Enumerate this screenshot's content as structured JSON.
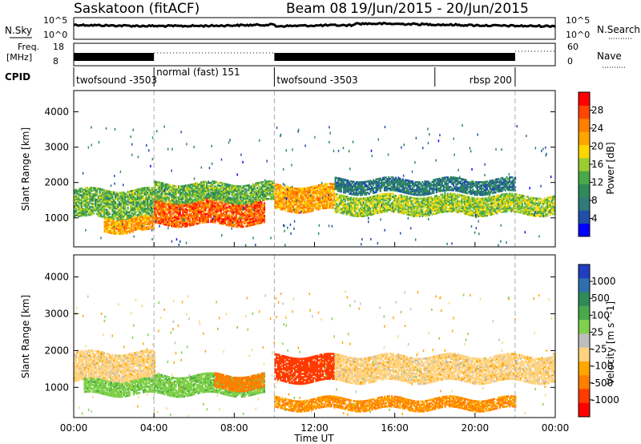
{
  "header": {
    "station": "Saskatoon (fitACF)",
    "beam": "Beam 08",
    "date_range": "19/Jun/2015 - 20/Jun/2015"
  },
  "top_panels": {
    "nsky_label": "N.Sky",
    "nsky_ticks": [
      "10^5",
      "10^0"
    ],
    "nsearch_label": "N.Search",
    "nsearch_ticks": [
      "10^5",
      "10^0"
    ],
    "freq_label": "Freq.",
    "freq_unit": "[MHz]",
    "freq_ticks": [
      "18",
      "8"
    ],
    "nave_label": "Nave",
    "nave_ticks": [
      "60",
      "0"
    ],
    "cpid_label": "CPID",
    "cpid_segments": [
      {
        "label": "twofsound -3503",
        "start_hour": 0,
        "end_hour": 4
      },
      {
        "label": "normal (fast) 151",
        "start_hour": 4,
        "end_hour": 10
      },
      {
        "label": "twofsound -3503",
        "start_hour": 10,
        "end_hour": 18
      },
      {
        "label": "rbsp 200",
        "start_hour": 18,
        "end_hour": 22
      }
    ]
  },
  "power_panel": {
    "ylabel": "Slant Range [km]",
    "yticks": [
      "4000",
      "3000",
      "2000",
      "1000"
    ],
    "colorbar_label": "Power [dB]",
    "colorbar_ticks": [
      "28",
      "24",
      "20",
      "16",
      "12",
      "8",
      "4"
    ],
    "colors": [
      "#0000ff",
      "#1f4fa8",
      "#2f7a7a",
      "#2e8b57",
      "#4aa84a",
      "#9acd32",
      "#ffd700",
      "#ffa500",
      "#ff7f00",
      "#ff4500",
      "#ff0000"
    ]
  },
  "velocity_panel": {
    "ylabel": "Slant Range [km]",
    "yticks": [
      "4000",
      "3000",
      "2000",
      "1000"
    ],
    "colorbar_label": "Velocity [m s^-1]",
    "colorbar_ticks": [
      "1000",
      "500",
      "100",
      "25",
      "-25",
      "-100",
      "-500",
      "-1000"
    ],
    "colors": [
      "#1f3fbf",
      "#2f6fb0",
      "#2e8b57",
      "#4aa84a",
      "#7fd04a",
      "#bebebe",
      "#ffd27f",
      "#ffa500",
      "#ff7f00",
      "#ff3b00",
      "#ff0000"
    ]
  },
  "xaxis": {
    "xlabel": "Time UT",
    "ticks": [
      "00:00",
      "04:00",
      "08:00",
      "12:00",
      "16:00",
      "20:00",
      "00:00"
    ]
  },
  "chart_data": {
    "type": "heatmap",
    "x_hours": [
      0,
      24
    ],
    "ylim_km": [
      180,
      4600
    ],
    "mode_change_hours": [
      4,
      10,
      22
    ],
    "power_bands": [
      {
        "start_hour": 0,
        "end_hour": 4,
        "center_km": 1400,
        "width_km": 800,
        "value_db": 14
      },
      {
        "start_hour": 1.5,
        "end_hour": 4,
        "center_km": 800,
        "width_km": 400,
        "value_db": 22
      },
      {
        "start_hour": 4,
        "end_hour": 9.5,
        "center_km": 1150,
        "width_km": 700,
        "value_db": 26
      },
      {
        "start_hour": 4,
        "end_hour": 10,
        "center_km": 1700,
        "width_km": 500,
        "value_db": 14
      },
      {
        "start_hour": 10,
        "end_hour": 13,
        "center_km": 1550,
        "width_km": 700,
        "value_db": 22
      },
      {
        "start_hour": 13,
        "end_hour": 24,
        "center_km": 1350,
        "width_km": 500,
        "value_db": 16
      },
      {
        "start_hour": 13,
        "end_hour": 22,
        "center_km": 1900,
        "width_km": 400,
        "value_db": 8
      }
    ],
    "velocity_bands": [
      {
        "start_hour": 0,
        "end_hour": 4,
        "center_km": 1550,
        "width_km": 800,
        "value_ms": 0
      },
      {
        "start_hour": 0.5,
        "end_hour": 4,
        "center_km": 1000,
        "width_km": 400,
        "value_ms": 80
      },
      {
        "start_hour": 4,
        "end_hour": 9.5,
        "center_km": 1050,
        "width_km": 500,
        "value_ms": 80
      },
      {
        "start_hour": 7,
        "end_hour": 9.5,
        "center_km": 1150,
        "width_km": 400,
        "value_ms": -150
      },
      {
        "start_hour": 10,
        "end_hour": 13,
        "center_km": 1500,
        "width_km": 700,
        "value_ms": -400
      },
      {
        "start_hour": 13,
        "end_hour": 24,
        "center_km": 1500,
        "width_km": 700,
        "value_ms": 0
      },
      {
        "start_hour": 10,
        "end_hour": 22,
        "center_km": 550,
        "width_km": 300,
        "value_ms": -100
      }
    ]
  }
}
